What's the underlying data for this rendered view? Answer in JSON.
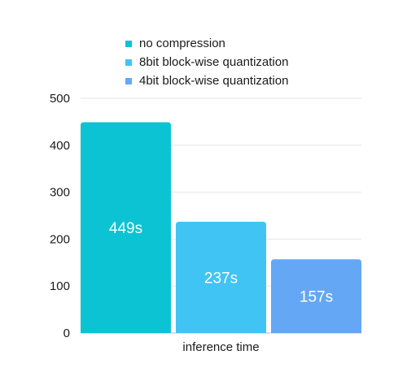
{
  "chart_data": {
    "type": "bar",
    "title": "",
    "xlabel": "",
    "ylabel": "",
    "categories": [
      "inference time"
    ],
    "series": [
      {
        "name": "no compression",
        "values": [
          449
        ],
        "label": "449s",
        "color": "#0cc3d3"
      },
      {
        "name": "8bit block-wise quantization",
        "values": [
          237
        ],
        "label": "237s",
        "color": "#3fc4f4"
      },
      {
        "name": "4bit block-wise quantization",
        "values": [
          157
        ],
        "label": "157s",
        "color": "#64a7f4"
      }
    ],
    "ylim": [
      0,
      500
    ],
    "yticks": [
      0,
      100,
      200,
      300,
      400,
      500
    ],
    "grid": true,
    "legend_position": "top"
  }
}
